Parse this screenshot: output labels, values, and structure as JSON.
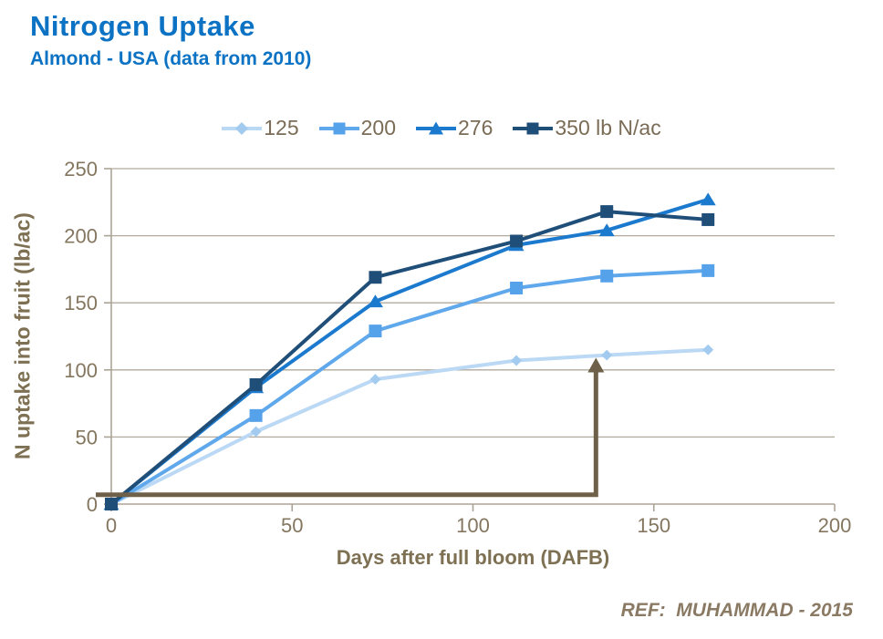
{
  "header": {
    "title": "Nitrogen Uptake",
    "subtitle": "Almond - USA (data from 2010)"
  },
  "footer": {
    "reference": "REF:  MUHAMMAD - 2015"
  },
  "colors": {
    "brand_blue": "#0B72C4",
    "axis_line": "#ABA396",
    "gridline": "#B2AA9C",
    "tick_label": "#84765F",
    "axis_title": "#7E7053",
    "legend_text": "#7A6C56",
    "reference_text": "#8A7A64",
    "annotation_arrow": "#6F6149"
  },
  "chart_data": {
    "type": "line",
    "title": "Nitrogen Uptake",
    "subtitle": "Almond - USA (data from 2010)",
    "xlabel": "Days after full bloom (DAFB)",
    "ylabel": "N uptake into fruit (lb/ac)",
    "xlim": [
      0,
      200
    ],
    "ylim": [
      0,
      250
    ],
    "xticks": [
      0,
      50,
      100,
      150,
      200
    ],
    "yticks": [
      0,
      50,
      100,
      150,
      200,
      250
    ],
    "grid": "horizontal-only",
    "legend_position": "top-center",
    "legend_suffix_on_last": "lb N/ac",
    "x": [
      0,
      40,
      73,
      112,
      137,
      165
    ],
    "series": [
      {
        "name": "125",
        "marker": "diamond",
        "line_color": "#BBD8F4",
        "marker_color": "#A3CBEF",
        "values": [
          0,
          54,
          93,
          107,
          111,
          115
        ]
      },
      {
        "name": "200",
        "marker": "square",
        "line_color": "#5FA8EC",
        "marker_color": "#56A2EA",
        "values": [
          0,
          66,
          129,
          161,
          170,
          174
        ]
      },
      {
        "name": "276",
        "marker": "triangle",
        "line_color": "#1B79CE",
        "marker_color": "#1B79CE",
        "values": [
          0,
          87,
          151,
          193,
          204,
          227
        ]
      },
      {
        "name": "350 lb N/ac",
        "marker": "square",
        "line_color": "#1F4E79",
        "marker_color": "#1F4E79",
        "values": [
          0,
          89,
          169,
          196,
          218,
          212
        ]
      }
    ],
    "annotation_arrow": {
      "x": 134,
      "y_start": 7,
      "y_end": 109,
      "color": "#6F6149",
      "meaning": "elbow arrow from origin baseline pointing up to the 125 lb N/ac curve near 135 DAFB"
    }
  }
}
